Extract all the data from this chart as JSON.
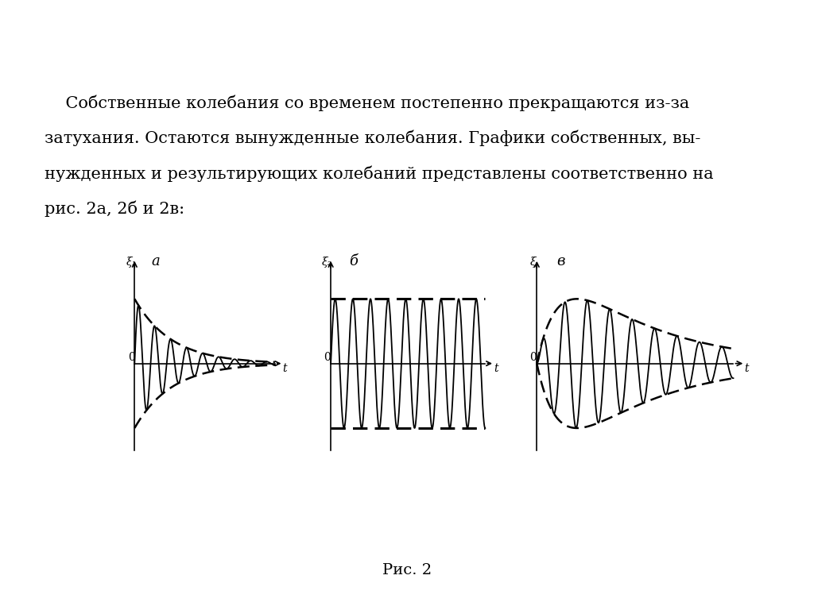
{
  "text_line1": "    Собственные колебания со временем постепенно прекращаются из-за",
  "text_line2": "затухания. Остаются вынужденные колебания. Графики собственных, вы-",
  "text_line3": "нужденных и результирующих колебаний представлены соответственно на",
  "text_line4": "рис. 2а, 2б и 2в:",
  "caption": "Рис. 2",
  "label_a": "а",
  "label_b": "б",
  "label_v": "в",
  "xi1_label": "ξ₁",
  "xi2_label": "ξ₂",
  "xi_label": "ξ",
  "t_label": "t",
  "zero_label": "0",
  "background_color": "#ffffff",
  "text_color": "#000000",
  "font_size_text": 15,
  "font_size_label": 11
}
